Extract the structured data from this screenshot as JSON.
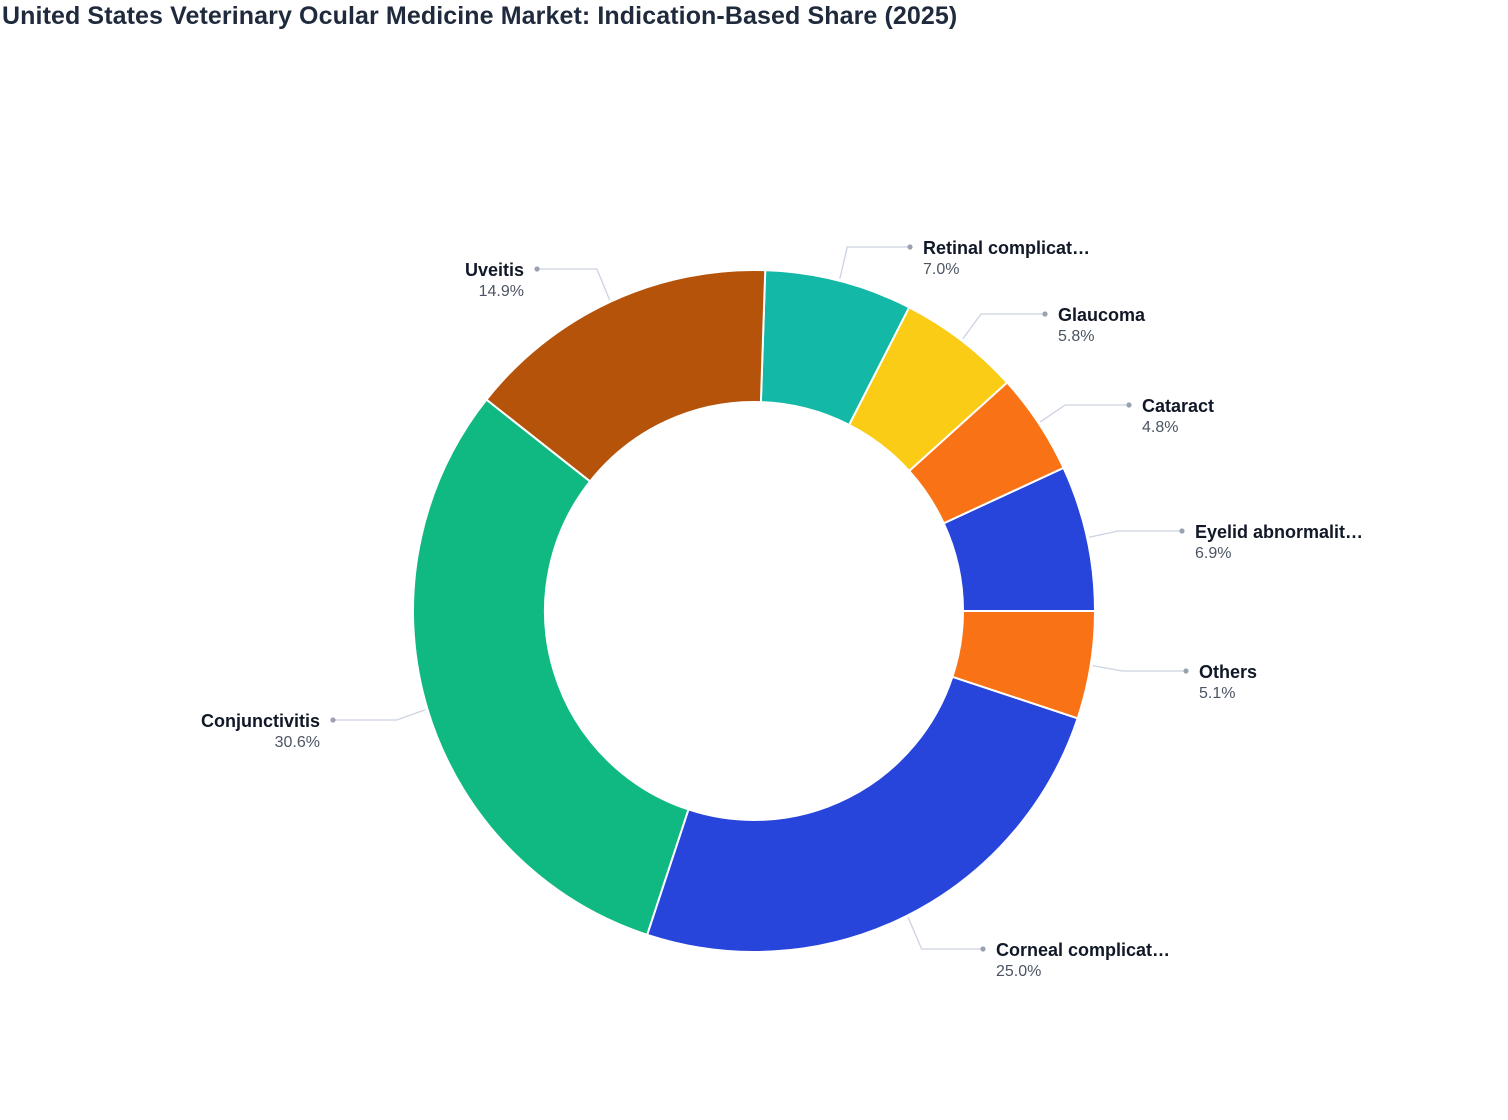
{
  "chart_data": {
    "type": "pie",
    "donut": true,
    "title": "United States Veterinary Ocular Medicine Market: Indication-Based Share (2025)",
    "value_unit": "%",
    "legend": "none",
    "slices": [
      {
        "label": "Eyelid abnormalit…",
        "value": 6.9,
        "display": "6.9%",
        "color": "#2744db"
      },
      {
        "label": "Cataract",
        "value": 4.8,
        "display": "4.8%",
        "color": "#f97316"
      },
      {
        "label": "Glaucoma",
        "value": 5.8,
        "display": "5.8%",
        "color": "#facc15"
      },
      {
        "label": "Retinal complicat…",
        "value": 7.0,
        "display": "7.0%",
        "color": "#14b8a6"
      },
      {
        "label": "Uveitis",
        "value": 14.9,
        "display": "14.9%",
        "color": "#b45309"
      },
      {
        "label": "Conjunctivitis",
        "value": 30.6,
        "display": "30.6%",
        "color": "#10b981"
      },
      {
        "label": "Corneal complicat…",
        "value": 25.0,
        "display": "25.0%",
        "color": "#2744db"
      },
      {
        "label": "Others",
        "value": 5.1,
        "display": "5.1%",
        "color": "#f97316"
      }
    ]
  }
}
